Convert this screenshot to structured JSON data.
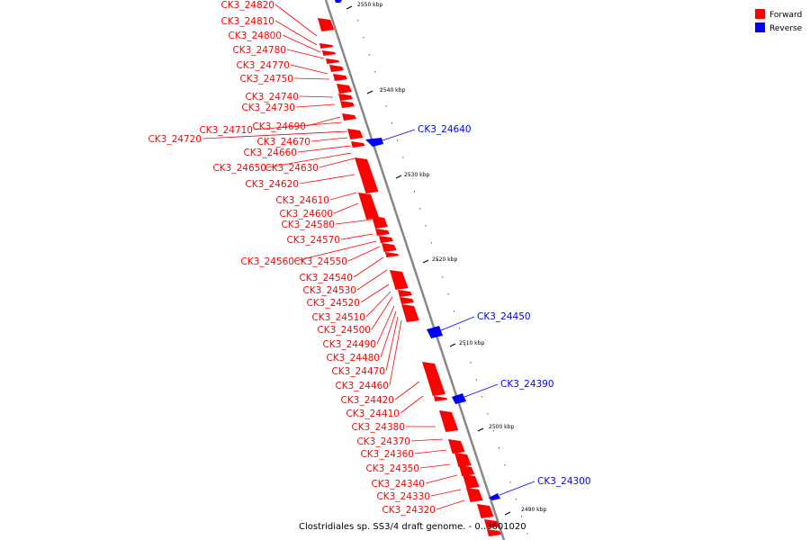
{
  "caption": "Clostridiales sp. SS3/4 draft genome. - 0..3601020",
  "legend": [
    {
      "label": "Forward",
      "color": "#ff0000"
    },
    {
      "label": "Reverse",
      "color": "#0000ff"
    }
  ],
  "colors": {
    "forward": "#ff0000",
    "reverse": "#0000ff",
    "backbone": "#888888"
  },
  "ticks": [
    "2550 kbp",
    "2540 kbp",
    "2530 kbp",
    "2520 kbp",
    "2510 kbp",
    "2500 kbp",
    "2490 kbp"
  ],
  "forward_labels": [
    "CK3_24820",
    "CK3_24810",
    "CK3_24800",
    "CK3_24780",
    "CK3_24770",
    "CK3_24750",
    "CK3_24740",
    "CK3_24730",
    "CK3_24690",
    "CK3_24710",
    "CK3_24720",
    "CK3_24670",
    "CK3_24660",
    "CK3_24650",
    "CK3_24630",
    "CK3_24620",
    "CK3_24610",
    "CK3_24600",
    "CK3_24580",
    "CK3_24570",
    "CK3_24560",
    "CK3_24550",
    "CK3_24540",
    "CK3_24530",
    "CK3_24520",
    "CK3_24510",
    "CK3_24500",
    "CK3_24490",
    "CK3_24480",
    "CK3_24470",
    "CK3_24460",
    "CK3_24420",
    "CK3_24410",
    "CK3_24380",
    "CK3_24370",
    "CK3_24360",
    "CK3_24350",
    "CK3_24340",
    "CK3_24330",
    "CK3_24320"
  ],
  "reverse_labels": [
    "CK3_24640",
    "CK3_24450",
    "CK3_24390",
    "CK3_24300"
  ]
}
